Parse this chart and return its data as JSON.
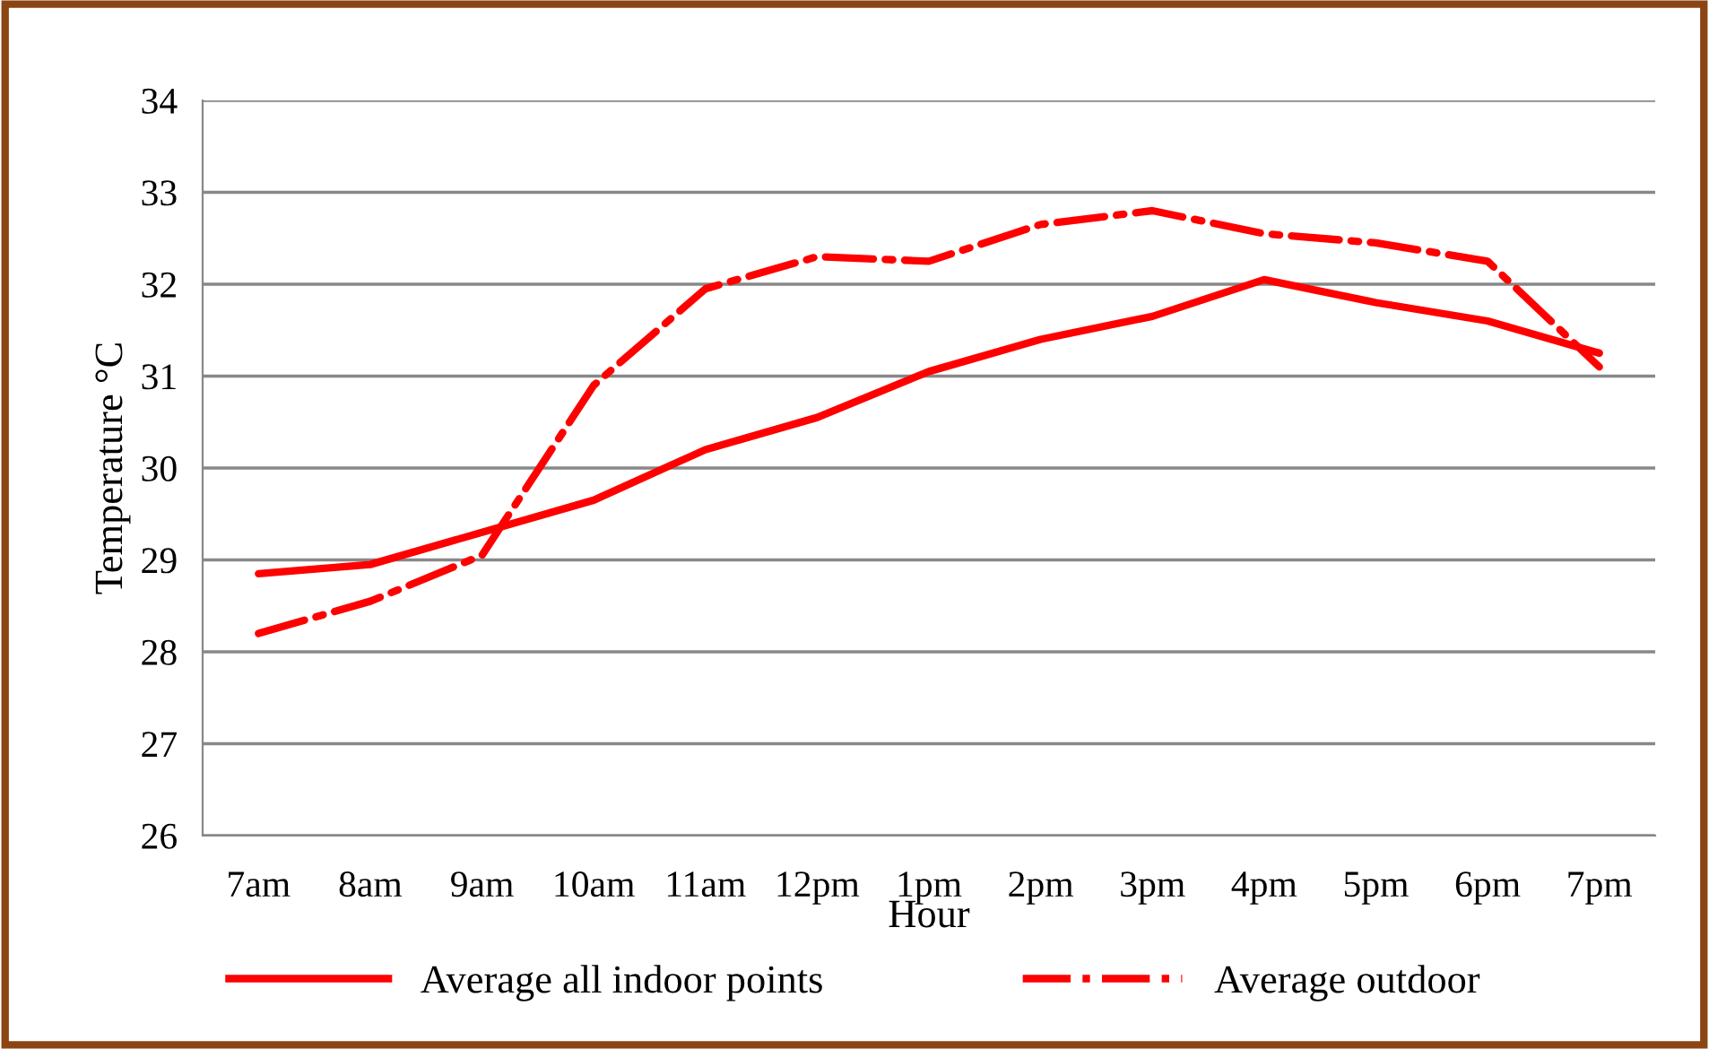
{
  "chart_data": {
    "type": "line",
    "xlabel": "Hour",
    "ylabel": "Temperature °C",
    "categories": [
      "7am",
      "8am",
      "9am",
      "10am",
      "11am",
      "12pm",
      "1pm",
      "2pm",
      "3pm",
      "4pm",
      "5pm",
      "6pm",
      "7pm"
    ],
    "series": [
      {
        "name": "Average all indoor points",
        "color": "#ff0000",
        "line_style": "solid",
        "values": [
          28.85,
          28.95,
          29.3,
          29.65,
          30.2,
          30.55,
          31.05,
          31.4,
          31.65,
          32.05,
          31.8,
          31.6,
          31.25
        ]
      },
      {
        "name": "Average outdoor",
        "color": "#ff0000",
        "line_style": "dashdot",
        "values": [
          28.2,
          28.55,
          29.05,
          30.9,
          31.95,
          32.3,
          32.25,
          32.65,
          32.8,
          32.55,
          32.45,
          32.25,
          31.1
        ]
      }
    ],
    "ylim": [
      26,
      34
    ],
    "yticks": [
      26,
      27,
      28,
      29,
      30,
      31,
      32,
      33,
      34
    ],
    "grid": "y",
    "legend": "bottom",
    "marker": "none"
  }
}
